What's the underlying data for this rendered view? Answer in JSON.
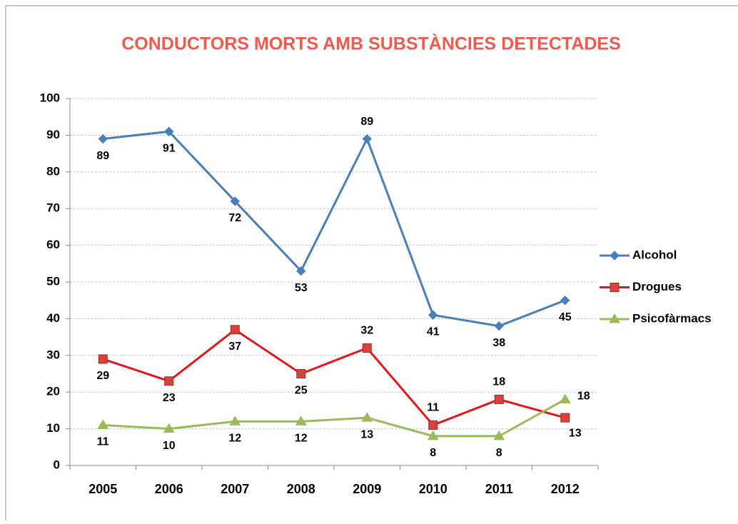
{
  "chart_data": {
    "type": "line",
    "title": "CONDUCTORS MORTS AMB SUBSTÀNCIES DETECTADES",
    "categories": [
      "2005",
      "2006",
      "2007",
      "2008",
      "2009",
      "2010",
      "2011",
      "2012"
    ],
    "series": [
      {
        "name": "Alcohol",
        "color": "#4a7ebb",
        "marker": "diamond",
        "values": [
          89,
          91,
          72,
          53,
          89,
          41,
          38,
          45
        ]
      },
      {
        "name": "Drogues",
        "color": "#e3171b",
        "marker": "square",
        "values": [
          29,
          23,
          37,
          25,
          32,
          11,
          18,
          13
        ]
      },
      {
        "name": "Psicofàrmacs",
        "color": "#9bbb59",
        "marker": "triangle",
        "values": [
          11,
          10,
          12,
          12,
          13,
          8,
          8,
          18
        ]
      }
    ],
    "ylim": [
      0,
      100
    ],
    "yticks": [
      0,
      10,
      20,
      30,
      40,
      50,
      60,
      70,
      80,
      90,
      100
    ],
    "grid": true,
    "legend": "right"
  }
}
